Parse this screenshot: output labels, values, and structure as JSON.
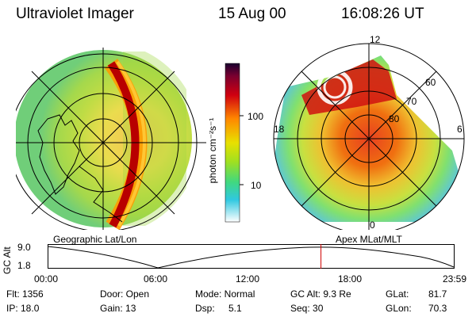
{
  "header": {
    "instrument": "Ultraviolet Imager",
    "date": "15 Aug 00",
    "time": "16:08:26 UT"
  },
  "colorbar": {
    "unit_label": "photon cm⁻²s⁻¹",
    "ticks": [
      "100",
      "10"
    ]
  },
  "polar_plot": {
    "mlt_labels": [
      "12",
      "18",
      "6",
      "0"
    ],
    "lat_labels": [
      "60",
      "70",
      "80"
    ]
  },
  "map_labels": {
    "left": "Geographic Lat/Lon",
    "right": "Apex MLat/MLT"
  },
  "altitude_plot": {
    "ylabel": "GC Alt",
    "y_ticks": [
      "9.0",
      "1.8"
    ],
    "x_ticks": [
      "00:00",
      "06:00",
      "12:00",
      "18:00",
      "23:59"
    ],
    "current_time_fraction": 0.672
  },
  "footer": {
    "flt": "Flt: 1356",
    "ip": "IP: 18.0",
    "door": "Door: Open",
    "gain": "Gain: 13",
    "mode": "Mode: Normal",
    "dsp_label": "Dsp:",
    "dsp_value": "5.1",
    "gcalt": "GC Alt: 9.3 Re",
    "seq": "Seq: 30",
    "glat_label": "GLat:",
    "glat_value": "81.7",
    "glon_label": "GLon:",
    "glon_value": "70.3"
  }
}
